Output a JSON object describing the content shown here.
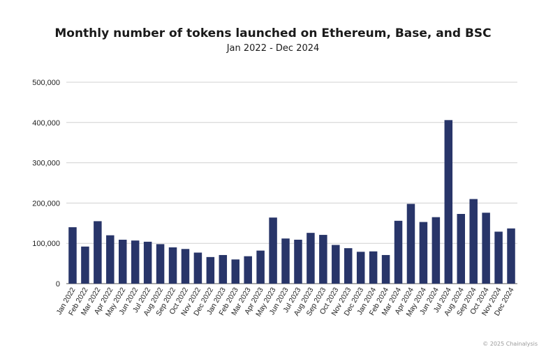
{
  "chart_data": {
    "type": "bar",
    "title": "Monthly number of tokens launched on Ethereum, Base, and BSC",
    "subtitle": "Jan 2022 - Dec 2024",
    "xlabel": "",
    "ylabel": "",
    "ylim": [
      0,
      500000
    ],
    "yticks": [
      0,
      100000,
      200000,
      300000,
      400000,
      500000
    ],
    "ytick_labels": [
      "0",
      "100,000",
      "200,000",
      "300,000",
      "400,000",
      "500,000"
    ],
    "grid": true,
    "bar_color": "#283569",
    "categories": [
      "Jan 2022",
      "Feb 2022",
      "Mar 2022",
      "Apr 2022",
      "May 2022",
      "Jun 2022",
      "Jul 2022",
      "Aug 2022",
      "Sep 2022",
      "Oct 2022",
      "Nov 2022",
      "Dec 2022",
      "Jan 2023",
      "Feb 2023",
      "Mar 2023",
      "Apr 2023",
      "May 2023",
      "Jun 2023",
      "Jul 2023",
      "Aug 2023",
      "Sep 2023",
      "Oct 2023",
      "Nov 2023",
      "Dec 2023",
      "Jan 2024",
      "Feb 2024",
      "Mar 2024",
      "Apr 2024",
      "May 2024",
      "Jun 2024",
      "Jul 2024",
      "Aug 2024",
      "Sep 2024",
      "Oct 2024",
      "Nov 2024",
      "Dec 2024"
    ],
    "values": [
      140000,
      92000,
      155000,
      120000,
      109000,
      107000,
      104000,
      98000,
      90000,
      86000,
      77000,
      66000,
      71000,
      60000,
      68000,
      82000,
      164000,
      112000,
      109000,
      126000,
      121000,
      96000,
      88000,
      79000,
      80000,
      71000,
      156000,
      198000,
      153000,
      165000,
      406000,
      173000,
      210000,
      176000,
      129000,
      137000
    ]
  },
  "footer": "© 2025 Chainalysis"
}
